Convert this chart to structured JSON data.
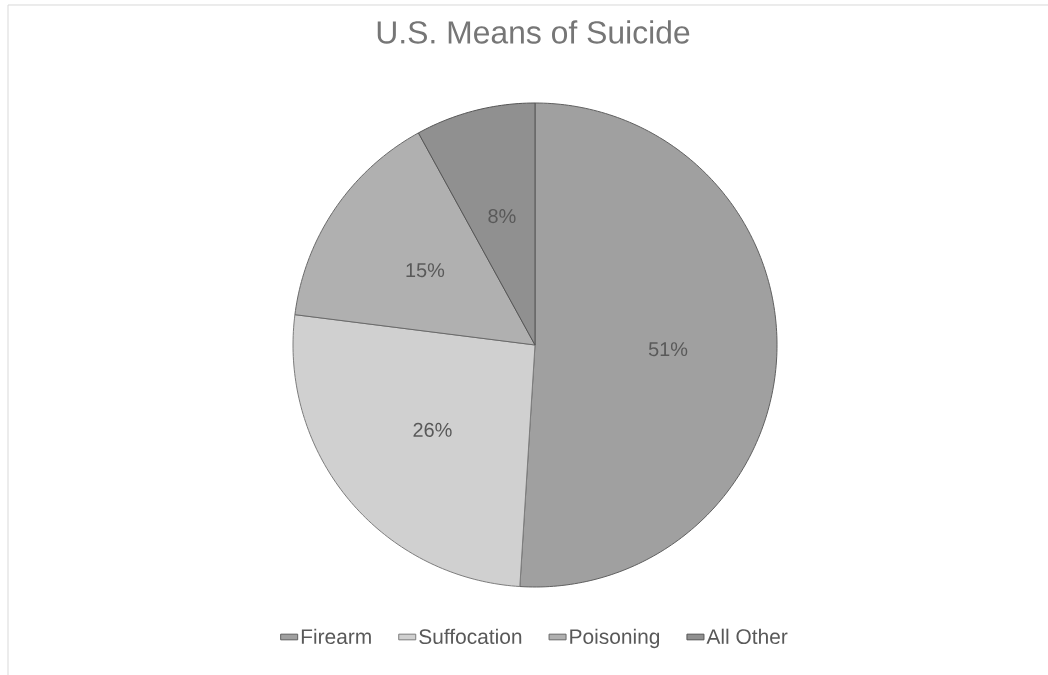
{
  "chart_data": {
    "type": "pie",
    "title": "U.S. Means of Suicide",
    "categories": [
      "Firearm",
      "Suffocation",
      "Poisoning",
      "All Other"
    ],
    "values": [
      51,
      26,
      15,
      8
    ],
    "colors": [
      "#a0a0a0",
      "#d0d0d0",
      "#b0b0b0",
      "#909090"
    ],
    "value_labels": [
      "51%",
      "26%",
      "15%",
      "8%"
    ],
    "legend": "bottom"
  }
}
